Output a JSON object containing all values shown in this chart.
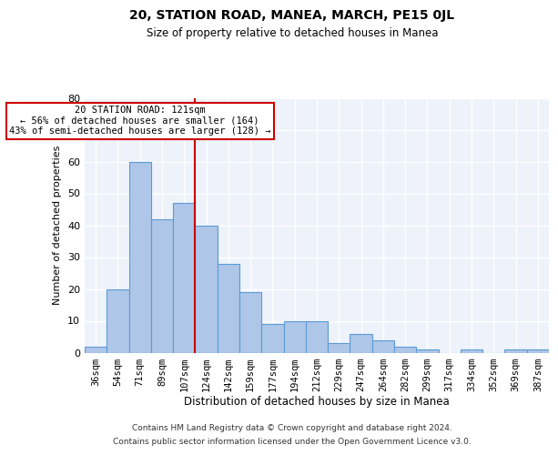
{
  "title": "20, STATION ROAD, MANEA, MARCH, PE15 0JL",
  "subtitle": "Size of property relative to detached houses in Manea",
  "xlabel": "Distribution of detached houses by size in Manea",
  "ylabel": "Number of detached properties",
  "categories": [
    "36sqm",
    "54sqm",
    "71sqm",
    "89sqm",
    "107sqm",
    "124sqm",
    "142sqm",
    "159sqm",
    "177sqm",
    "194sqm",
    "212sqm",
    "229sqm",
    "247sqm",
    "264sqm",
    "282sqm",
    "299sqm",
    "317sqm",
    "334sqm",
    "352sqm",
    "369sqm",
    "387sqm"
  ],
  "values": [
    2,
    20,
    60,
    42,
    47,
    40,
    28,
    19,
    9,
    10,
    10,
    3,
    6,
    4,
    2,
    1,
    0,
    1,
    0,
    1,
    1
  ],
  "bar_color": "#aec6e8",
  "bar_edge_color": "#5b9bd5",
  "background_color": "#eef2fb",
  "grid_color": "#ffffff",
  "annotation_text": "20 STATION ROAD: 121sqm\n← 56% of detached houses are smaller (164)\n43% of semi-detached houses are larger (128) →",
  "vline_index": 4.5,
  "box_color": "#cc0000",
  "ylim": [
    0,
    80
  ],
  "yticks": [
    0,
    10,
    20,
    30,
    40,
    50,
    60,
    70,
    80
  ],
  "footer1": "Contains HM Land Registry data © Crown copyright and database right 2024.",
  "footer2": "Contains public sector information licensed under the Open Government Licence v3.0."
}
